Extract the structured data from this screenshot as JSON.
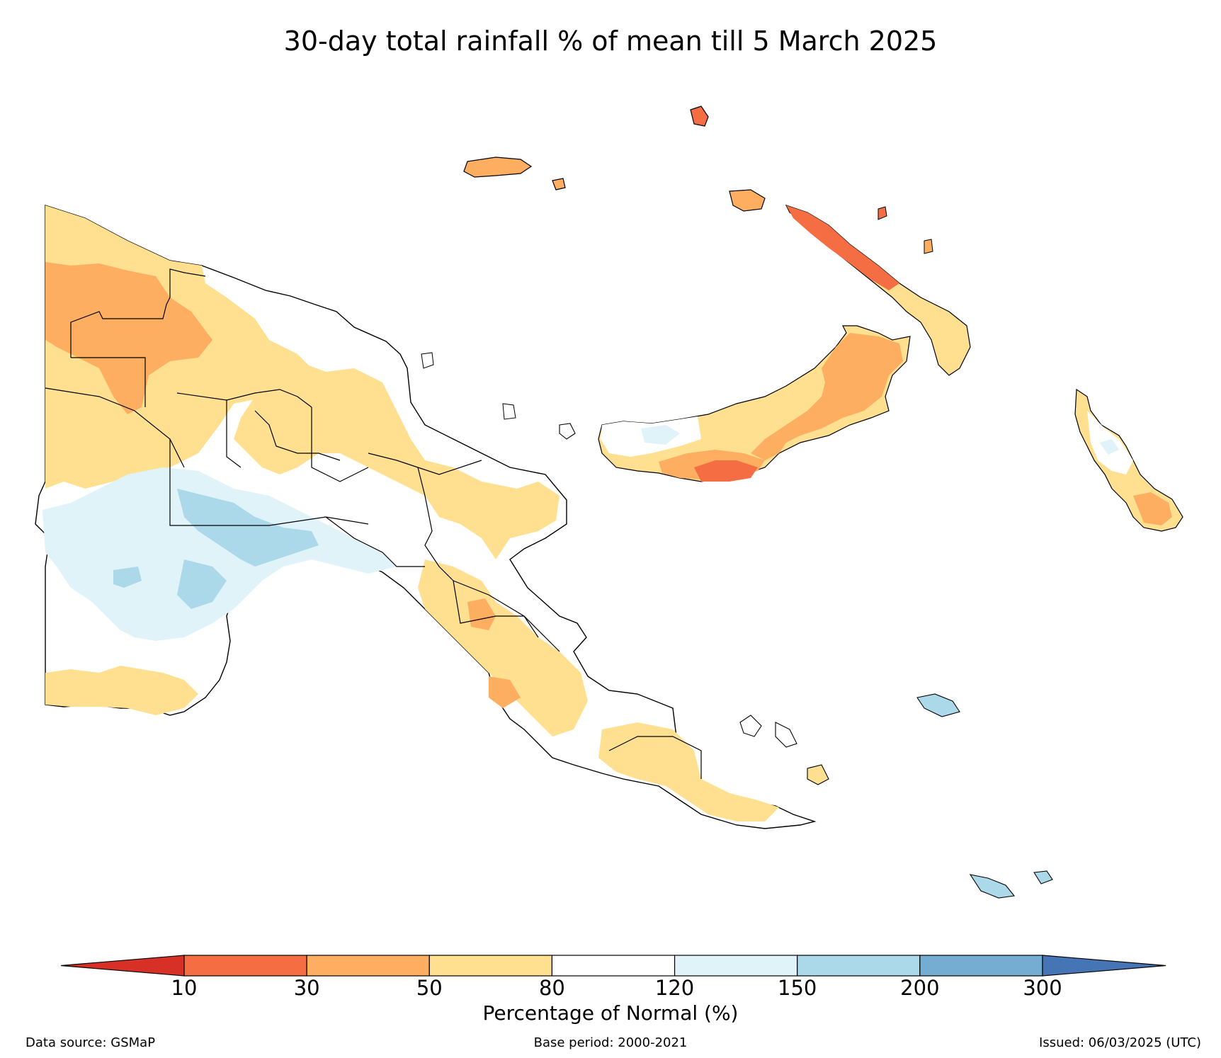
{
  "title": "30-day total rainfall % of mean till 5 March 2025",
  "legend": {
    "label": "Percentage of Normal (%)",
    "ticks": [
      "10",
      "30",
      "50",
      "80",
      "120",
      "150",
      "200",
      "300"
    ],
    "bins": [
      {
        "range": "<10",
        "color": "#d73027"
      },
      {
        "range": "10-30",
        "color": "#f46d43"
      },
      {
        "range": "30-50",
        "color": "#fdae61"
      },
      {
        "range": "50-80",
        "color": "#fee090"
      },
      {
        "range": "80-120",
        "color": "#ffffff"
      },
      {
        "range": "120-150",
        "color": "#e0f3f8"
      },
      {
        "range": "150-200",
        "color": "#abd9e9"
      },
      {
        "range": "200-300",
        "color": "#74add1"
      },
      {
        "range": ">300",
        "color": "#4575b4"
      }
    ]
  },
  "footer": {
    "source": "Data source: GSMaP",
    "base_period": "Base period: 2000-2021",
    "issued": "Issued: 06/03/2025 (UTC)"
  }
}
